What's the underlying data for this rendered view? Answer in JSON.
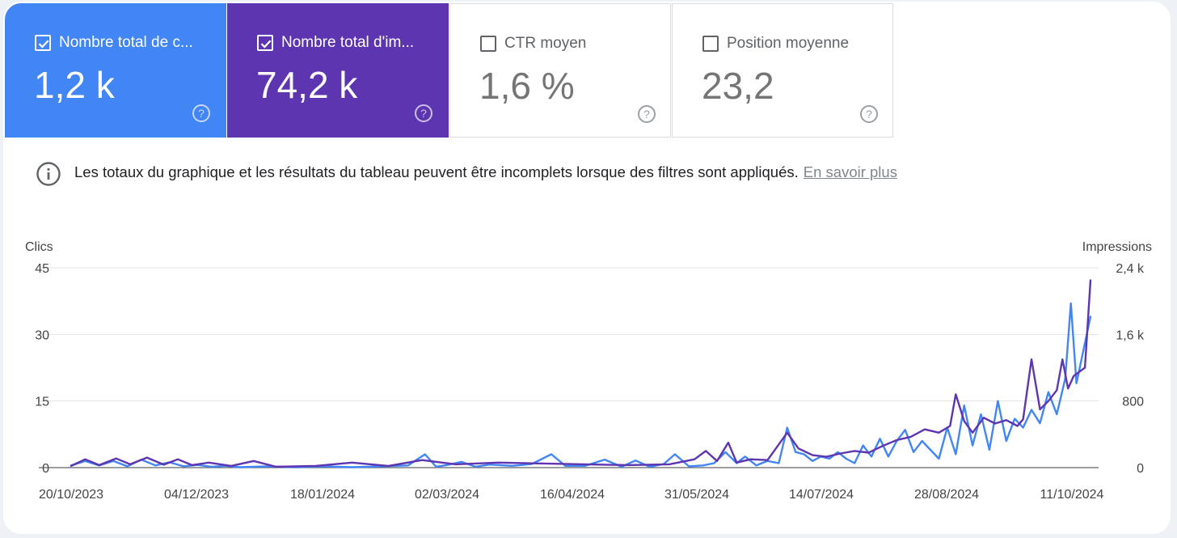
{
  "metrics": [
    {
      "label": "Nombre total de c...",
      "value": "1,2 k",
      "checked": true,
      "color": "#4285f4"
    },
    {
      "label": "Nombre total d'im...",
      "value": "74,2 k",
      "checked": true,
      "color": "#5e35b1"
    },
    {
      "label": "CTR moyen",
      "value": "1,6 %",
      "checked": false,
      "color": "#ffffff"
    },
    {
      "label": "Position moyenne",
      "value": "23,2",
      "checked": false,
      "color": "#ffffff"
    }
  ],
  "notice": {
    "text": "Les totaux du graphique et les résultats du tableau peuvent être incomplets lorsque des filtres sont appliqués.",
    "link": "En savoir plus"
  },
  "chart_data": {
    "type": "line",
    "ylabel_left": "Clics",
    "ylabel_right": "Impressions",
    "y_left_ticks": [
      "0",
      "15",
      "30",
      "45"
    ],
    "y_left_range": [
      0,
      45
    ],
    "y_right_ticks": [
      "0",
      "800",
      "1,6 k",
      "2,4 k"
    ],
    "y_right_range": [
      0,
      2400
    ],
    "x_ticks": [
      "20/10/2023",
      "04/12/2023",
      "18/01/2024",
      "02/03/2024",
      "16/04/2024",
      "31/05/2024",
      "14/07/2024",
      "28/08/2024",
      "11/10/2024"
    ],
    "x_range": [
      "2023-10-20",
      "2024-10-17"
    ],
    "grid": true,
    "series": [
      {
        "name": "Clics",
        "axis": "left",
        "color": "#4285f4",
        "points": [
          [
            "2023-10-20",
            0.5
          ],
          [
            "2023-10-25",
            1.5
          ],
          [
            "2023-10-30",
            0.5
          ],
          [
            "2023-11-04",
            1.5
          ],
          [
            "2023-11-09",
            0.3
          ],
          [
            "2023-11-14",
            1.8
          ],
          [
            "2023-11-19",
            0.5
          ],
          [
            "2023-11-24",
            1.2
          ],
          [
            "2023-11-29",
            0.3
          ],
          [
            "2023-12-04",
            0.6
          ],
          [
            "2023-12-09",
            0.2
          ],
          [
            "2023-12-14",
            0.4
          ],
          [
            "2023-12-19",
            0.1
          ],
          [
            "2023-12-29",
            0.3
          ],
          [
            "2024-01-08",
            0.1
          ],
          [
            "2024-01-18",
            0.3
          ],
          [
            "2024-01-28",
            0.1
          ],
          [
            "2024-02-07",
            0.3
          ],
          [
            "2024-02-17",
            0.5
          ],
          [
            "2024-02-23",
            3.0
          ],
          [
            "2024-02-27",
            0.2
          ],
          [
            "2024-03-02",
            0.6
          ],
          [
            "2024-03-07",
            1.3
          ],
          [
            "2024-03-12",
            0.2
          ],
          [
            "2024-03-17",
            0.7
          ],
          [
            "2024-03-25",
            0.4
          ],
          [
            "2024-04-01",
            0.8
          ],
          [
            "2024-04-08",
            3.0
          ],
          [
            "2024-04-13",
            0.4
          ],
          [
            "2024-04-20",
            0.4
          ],
          [
            "2024-04-27",
            1.8
          ],
          [
            "2024-05-03",
            0.2
          ],
          [
            "2024-05-08",
            1.6
          ],
          [
            "2024-05-13",
            0.2
          ],
          [
            "2024-05-18",
            0.8
          ],
          [
            "2024-05-22",
            3.0
          ],
          [
            "2024-05-27",
            0.3
          ],
          [
            "2024-06-01",
            0.5
          ],
          [
            "2024-06-05",
            1.0
          ],
          [
            "2024-06-09",
            3.5
          ],
          [
            "2024-06-13",
            1.0
          ],
          [
            "2024-06-16",
            2.5
          ],
          [
            "2024-06-20",
            0.5
          ],
          [
            "2024-06-24",
            1.5
          ],
          [
            "2024-06-28",
            1.0
          ],
          [
            "2024-07-01",
            9.0
          ],
          [
            "2024-07-04",
            3.5
          ],
          [
            "2024-07-07",
            3.0
          ],
          [
            "2024-07-10",
            1.5
          ],
          [
            "2024-07-13",
            2.5
          ],
          [
            "2024-07-16",
            2.0
          ],
          [
            "2024-07-19",
            3.5
          ],
          [
            "2024-07-22",
            2.0
          ],
          [
            "2024-07-25",
            1.0
          ],
          [
            "2024-07-28",
            5.0
          ],
          [
            "2024-07-31",
            2.5
          ],
          [
            "2024-08-03",
            6.5
          ],
          [
            "2024-08-06",
            2.5
          ],
          [
            "2024-08-09",
            6.0
          ],
          [
            "2024-08-12",
            8.5
          ],
          [
            "2024-08-15",
            3.5
          ],
          [
            "2024-08-18",
            6.0
          ],
          [
            "2024-08-21",
            4.0
          ],
          [
            "2024-08-24",
            2.0
          ],
          [
            "2024-08-27",
            9.0
          ],
          [
            "2024-08-30",
            3.0
          ],
          [
            "2024-09-02",
            14.0
          ],
          [
            "2024-09-05",
            5.0
          ],
          [
            "2024-09-08",
            12.0
          ],
          [
            "2024-09-11",
            4.0
          ],
          [
            "2024-09-14",
            15.0
          ],
          [
            "2024-09-17",
            6.0
          ],
          [
            "2024-09-20",
            11.0
          ],
          [
            "2024-09-23",
            9.0
          ],
          [
            "2024-09-26",
            13.0
          ],
          [
            "2024-09-29",
            10.0
          ],
          [
            "2024-10-02",
            17.0
          ],
          [
            "2024-10-05",
            12.0
          ],
          [
            "2024-10-08",
            20.0
          ],
          [
            "2024-10-10",
            37.0
          ],
          [
            "2024-10-12",
            19.0
          ],
          [
            "2024-10-14",
            25.0
          ],
          [
            "2024-10-17",
            34.0
          ]
        ]
      },
      {
        "name": "Impressions",
        "axis": "right",
        "color": "#5e35b1",
        "points": [
          [
            "2023-10-20",
            20
          ],
          [
            "2023-10-25",
            100
          ],
          [
            "2023-10-30",
            30
          ],
          [
            "2023-11-05",
            110
          ],
          [
            "2023-11-10",
            40
          ],
          [
            "2023-11-16",
            120
          ],
          [
            "2023-11-22",
            35
          ],
          [
            "2023-11-27",
            100
          ],
          [
            "2023-12-02",
            30
          ],
          [
            "2023-12-08",
            60
          ],
          [
            "2023-12-16",
            20
          ],
          [
            "2023-12-24",
            80
          ],
          [
            "2024-01-01",
            10
          ],
          [
            "2024-01-15",
            20
          ],
          [
            "2024-01-28",
            60
          ],
          [
            "2024-02-10",
            20
          ],
          [
            "2024-02-22",
            90
          ],
          [
            "2024-03-05",
            40
          ],
          [
            "2024-03-20",
            60
          ],
          [
            "2024-04-05",
            50
          ],
          [
            "2024-04-20",
            40
          ],
          [
            "2024-05-05",
            30
          ],
          [
            "2024-05-20",
            40
          ],
          [
            "2024-05-29",
            100
          ],
          [
            "2024-06-02",
            200
          ],
          [
            "2024-06-06",
            80
          ],
          [
            "2024-06-10",
            300
          ],
          [
            "2024-06-13",
            60
          ],
          [
            "2024-06-18",
            100
          ],
          [
            "2024-06-24",
            90
          ],
          [
            "2024-07-01",
            420
          ],
          [
            "2024-07-05",
            230
          ],
          [
            "2024-07-10",
            150
          ],
          [
            "2024-07-15",
            130
          ],
          [
            "2024-07-20",
            170
          ],
          [
            "2024-07-25",
            200
          ],
          [
            "2024-07-30",
            180
          ],
          [
            "2024-08-04",
            260
          ],
          [
            "2024-08-09",
            330
          ],
          [
            "2024-08-14",
            370
          ],
          [
            "2024-08-19",
            460
          ],
          [
            "2024-08-24",
            420
          ],
          [
            "2024-08-28",
            500
          ],
          [
            "2024-08-30",
            880
          ],
          [
            "2024-09-02",
            560
          ],
          [
            "2024-09-05",
            420
          ],
          [
            "2024-09-09",
            600
          ],
          [
            "2024-09-13",
            530
          ],
          [
            "2024-09-17",
            570
          ],
          [
            "2024-09-21",
            500
          ],
          [
            "2024-09-23",
            580
          ],
          [
            "2024-09-26",
            1300
          ],
          [
            "2024-09-29",
            700
          ],
          [
            "2024-10-02",
            800
          ],
          [
            "2024-10-05",
            930
          ],
          [
            "2024-10-07",
            1300
          ],
          [
            "2024-10-09",
            950
          ],
          [
            "2024-10-11",
            1100
          ],
          [
            "2024-10-13",
            1150
          ],
          [
            "2024-10-15",
            1200
          ],
          [
            "2024-10-17",
            2250
          ]
        ]
      }
    ]
  }
}
